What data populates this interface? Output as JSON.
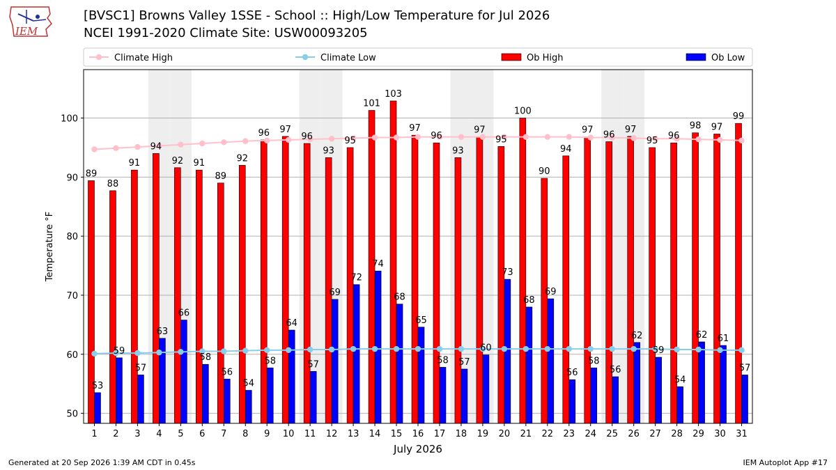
{
  "title": "[BVSC1] Browns Valley 1SSE - School :: High/Low Temperature for Jul 2026",
  "subtitle": "NCEI 1991-2020 Climate Site: USW00093205",
  "logo_text": "IEM",
  "footer_left": "Generated at 20 Sep 2026 1:39 AM CDT in 0.45s",
  "footer_right": "IEM Autoplot App #17",
  "chart_data": {
    "type": "bar",
    "xlabel": "July 2026",
    "ylabel": "Temperature °F",
    "ylim": [
      48.3,
      108.2
    ],
    "yticks": [
      50,
      60,
      70,
      80,
      90,
      100
    ],
    "grid": true,
    "legend_position": "top",
    "categories": [
      1,
      2,
      3,
      4,
      5,
      6,
      7,
      8,
      9,
      10,
      11,
      12,
      13,
      14,
      15,
      16,
      17,
      18,
      19,
      20,
      21,
      22,
      23,
      24,
      25,
      26,
      27,
      28,
      29,
      30,
      31
    ],
    "weekend_shading_days": [
      4,
      5,
      11,
      12,
      18,
      19,
      25,
      26
    ],
    "series": [
      {
        "name": "Climate High",
        "kind": "line",
        "color": "#ffc0cb",
        "values": [
          94.7,
          94.9,
          95.1,
          95.3,
          95.5,
          95.7,
          95.9,
          96.1,
          96.2,
          96.3,
          96.4,
          96.5,
          96.6,
          96.7,
          96.7,
          96.8,
          96.8,
          96.8,
          96.8,
          96.8,
          96.8,
          96.8,
          96.8,
          96.7,
          96.7,
          96.6,
          96.5,
          96.5,
          96.4,
          96.3,
          96.2
        ]
      },
      {
        "name": "Climate Low",
        "kind": "line",
        "color": "#87ceeb",
        "values": [
          60.1,
          60.2,
          60.2,
          60.3,
          60.4,
          60.5,
          60.5,
          60.6,
          60.7,
          60.7,
          60.8,
          60.8,
          60.9,
          60.9,
          60.9,
          60.9,
          60.9,
          60.9,
          60.9,
          60.9,
          60.9,
          60.9,
          60.9,
          60.9,
          60.9,
          60.9,
          60.9,
          60.8,
          60.8,
          60.7,
          60.7
        ]
      },
      {
        "name": "Ob High",
        "kind": "bar",
        "color": "#ff0000",
        "values": [
          89.4,
          87.7,
          91.2,
          94.0,
          91.6,
          91.2,
          89.0,
          92.0,
          96.3,
          96.9,
          95.7,
          93.3,
          95.0,
          101.3,
          102.9,
          97.1,
          95.8,
          93.3,
          96.8,
          95.2,
          100.0,
          89.8,
          93.6,
          96.8,
          96.0,
          96.9,
          95.0,
          95.8,
          97.5,
          97.3,
          99.1
        ],
        "labels": [
          89,
          88,
          91,
          94,
          92,
          91,
          89,
          92,
          96,
          97,
          96,
          93,
          95,
          101,
          103,
          97,
          96,
          93,
          97,
          95,
          100,
          90,
          94,
          97,
          96,
          97,
          95,
          96,
          98,
          97,
          99
        ]
      },
      {
        "name": "Ob Low",
        "kind": "bar",
        "color": "#0000ff",
        "values": [
          53.5,
          59.4,
          56.5,
          62.7,
          65.8,
          58.3,
          55.8,
          53.9,
          57.7,
          64.1,
          57.1,
          69.3,
          71.8,
          74.1,
          68.5,
          64.6,
          57.8,
          57.5,
          59.9,
          72.7,
          68.0,
          69.4,
          55.7,
          57.7,
          56.2,
          62.0,
          59.5,
          54.5,
          62.1,
          61.5,
          56.5
        ],
        "labels": [
          53,
          59,
          57,
          63,
          66,
          58,
          56,
          54,
          58,
          64,
          57,
          69,
          72,
          74,
          68,
          65,
          58,
          57,
          60,
          73,
          68,
          69,
          56,
          58,
          56,
          62,
          59,
          54,
          62,
          61,
          57
        ]
      }
    ]
  }
}
